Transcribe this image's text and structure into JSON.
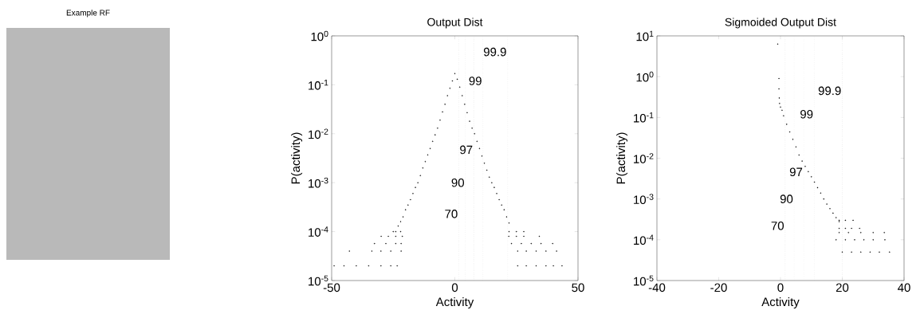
{
  "chart_data": [
    {
      "type": "other",
      "title": "Example RF"
    },
    {
      "type": "scatter",
      "title": "Output Dist",
      "xlabel": "Activity",
      "ylabel": "P(activity)",
      "log": "y",
      "marker": "circle",
      "xlim": [
        -50,
        50
      ],
      "xticks": [
        -50,
        0,
        50
      ],
      "ylim": [
        1e-05,
        1
      ],
      "yticks": [
        {
          "value": 1e-05,
          "label": "10$^{-5}$"
        },
        {
          "value": 0.0001,
          "label": "10$^{-4}$"
        },
        {
          "value": 0.001,
          "label": "10$^{-3}$"
        },
        {
          "value": 0.01,
          "label": "10$^{-2}$"
        },
        {
          "value": 0.1,
          "label": "10$^{-1}$"
        },
        {
          "value": 1,
          "label": "10$^{0}$"
        }
      ],
      "series": [
        {
          "color": "#000000",
          "x": [
            -24,
            -23,
            -22,
            -21,
            -20,
            -19,
            -18,
            -17,
            -16,
            -15,
            -14,
            -13,
            -12,
            -11,
            -10,
            -9,
            -8,
            -7,
            -6,
            -5,
            -4,
            -3,
            -2,
            -1,
            0,
            1,
            2,
            3,
            4,
            5,
            6,
            7,
            8,
            9,
            10,
            11,
            12,
            13,
            14,
            15,
            16,
            17,
            18,
            19,
            20,
            21,
            22,
            -25,
            -22,
            22,
            25,
            28,
            -29.9,
            -27,
            -24,
            -21.3,
            21.9,
            25,
            28,
            34.3,
            -32.6,
            -28,
            -24,
            -21.8,
            23,
            27,
            31,
            35,
            39.7,
            -42.8,
            -33.7,
            -30,
            -26,
            -21.8,
            25.5,
            29,
            33,
            37,
            41.3,
            -49,
            -45,
            -40,
            -35,
            -30,
            -26,
            -23.4,
            25.5,
            29,
            33,
            37,
            40,
            43.5
          ],
          "values": [
            0.0001,
            0.00013,
            0.00016,
            0.0002,
            0.00028,
            0.00035,
            0.00045,
            0.0006,
            0.0008,
            0.001,
            0.0014,
            0.002,
            0.0027,
            0.0037,
            0.005,
            0.007,
            0.0095,
            0.013,
            0.019,
            0.028,
            0.04,
            0.06,
            0.085,
            0.12,
            0.17,
            0.13,
            0.09,
            0.06,
            0.04,
            0.027,
            0.018,
            0.013,
            0.01,
            0.007,
            0.005,
            0.0035,
            0.0025,
            0.0018,
            0.0013,
            0.001,
            0.0008,
            0.0006,
            0.00045,
            0.00035,
            0.00028,
            0.0002,
            0.00015,
            0.0001,
            0.0001,
            0.0001,
            0.0001,
            0.0001,
            8e-05,
            8e-05,
            8e-05,
            8e-05,
            8e-05,
            8e-05,
            8e-05,
            8e-05,
            5.7e-05,
            5.7e-05,
            5.7e-05,
            5.7e-05,
            5.7e-05,
            5.7e-05,
            5.7e-05,
            5.7e-05,
            5.7e-05,
            4e-05,
            4e-05,
            4e-05,
            4e-05,
            4e-05,
            4e-05,
            4e-05,
            4e-05,
            4e-05,
            4e-05,
            2e-05,
            2e-05,
            2e-05,
            2e-05,
            2e-05,
            2e-05,
            2e-05,
            2e-05,
            2e-05,
            2e-05,
            2e-05,
            2e-05,
            2e-05
          ]
        }
      ],
      "ref_lines": [
        {
          "axis": "x",
          "value": 1.6,
          "color": "#a0a0a0",
          "line_style": "dotted"
        },
        {
          "axis": "x",
          "value": 4.3,
          "color": "#a0a0a0",
          "line_style": "dotted"
        },
        {
          "axis": "x",
          "value": 7.7,
          "color": "#a0a0a0",
          "line_style": "dotted"
        },
        {
          "axis": "x",
          "value": 11.4,
          "color": "#a0a0a0",
          "line_style": "dotted"
        },
        {
          "axis": "x",
          "value": 21.4,
          "color": "#a0a0a0",
          "line_style": "dotted"
        }
      ],
      "annotations": [
        {
          "text": "70",
          "x": 1.6,
          "y": 0.00023
        },
        {
          "text": "90",
          "x": 4.3,
          "y": 0.001
        },
        {
          "text": "97",
          "x": 7.7,
          "y": 0.0047
        },
        {
          "text": "99",
          "x": 11.4,
          "y": 0.12
        },
        {
          "text": "99.9",
          "x": 21.4,
          "y": 0.47
        }
      ]
    },
    {
      "type": "scatter",
      "title": "Sigmoided Output Dist",
      "xlabel": "Activity",
      "ylabel": "P(activity)",
      "log": "y",
      "marker": "circle",
      "xlim": [
        -40,
        40
      ],
      "xticks": [
        -40,
        -20,
        0,
        20,
        40
      ],
      "ylim": [
        1e-05,
        10
      ],
      "yticks": [
        {
          "value": 1e-05,
          "label": "10$^{-5}$"
        },
        {
          "value": 0.0001,
          "label": "10$^{-4}$"
        },
        {
          "value": 0.001,
          "label": "10$^{-3}$"
        },
        {
          "value": 0.01,
          "label": "10$^{-2}$"
        },
        {
          "value": 0.1,
          "label": "10$^{-1}$"
        },
        {
          "value": 1,
          "label": "10$^{0}$"
        },
        {
          "value": 10,
          "label": "10$^{1}$"
        }
      ],
      "series": [
        {
          "color": "#000000",
          "x": [
            -0.9,
            -0.5,
            -0.5,
            -0.4,
            -0.3,
            0,
            0.5,
            1,
            2,
            3,
            4,
            5,
            6,
            7,
            8,
            9,
            10,
            11,
            12,
            13,
            14,
            15,
            16,
            17,
            18,
            19,
            19,
            21,
            23.5,
            19,
            21,
            23,
            25.6,
            19,
            22,
            26,
            30,
            33.6,
            18,
            21,
            24,
            27,
            30,
            33.8,
            20,
            23,
            26,
            29,
            32,
            35.3
          ],
          "values": [
            6.3,
            0.9,
            0.5,
            0.3,
            0.22,
            0.18,
            0.15,
            0.11,
            0.068,
            0.044,
            0.029,
            0.019,
            0.012,
            0.0085,
            0.0063,
            0.0047,
            0.0035,
            0.0026,
            0.0019,
            0.0014,
            0.001,
            0.00075,
            0.00058,
            0.00045,
            0.00035,
            0.00028,
            0.0003,
            0.0003,
            0.0003,
            0.00019,
            0.00019,
            0.00019,
            0.00019,
            0.00015,
            0.00015,
            0.00015,
            0.00015,
            0.00015,
            0.0001,
            0.0001,
            0.0001,
            0.0001,
            0.0001,
            0.0001,
            5e-05,
            5e-05,
            5e-05,
            5e-05,
            5e-05,
            5e-05
          ]
        }
      ],
      "ref_lines": [
        {
          "axis": "x",
          "value": 1.5,
          "color": "#a0a0a0",
          "line_style": "dotted"
        },
        {
          "axis": "x",
          "value": 4.4,
          "color": "#a0a0a0",
          "line_style": "dotted"
        },
        {
          "axis": "x",
          "value": 7.5,
          "color": "#a0a0a0",
          "line_style": "dotted"
        },
        {
          "axis": "x",
          "value": 10.9,
          "color": "#a0a0a0",
          "line_style": "dotted"
        },
        {
          "axis": "x",
          "value": 20,
          "color": "#a0a0a0",
          "line_style": "dotted"
        }
      ],
      "annotations": [
        {
          "text": "70",
          "x": 1.5,
          "y": 0.00022
        },
        {
          "text": "90",
          "x": 4.4,
          "y": 0.001
        },
        {
          "text": "97",
          "x": 7.5,
          "y": 0.0046
        },
        {
          "text": "99",
          "x": 10.9,
          "y": 0.12
        },
        {
          "text": "99.9",
          "x": 20,
          "y": 0.45
        }
      ]
    }
  ]
}
